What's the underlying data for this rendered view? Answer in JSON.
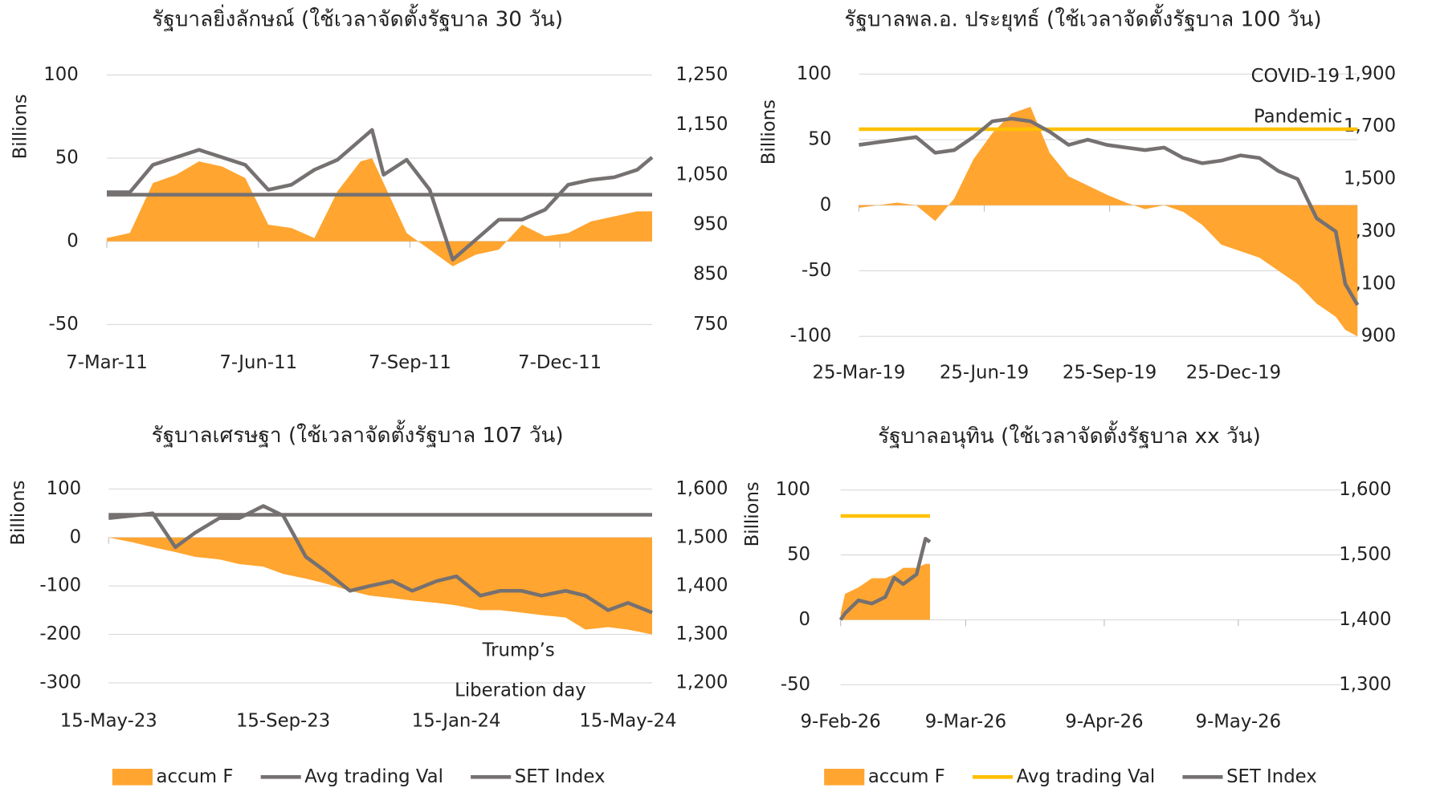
{
  "chart_data": [
    {
      "type": "combo",
      "title": "รัฐบาลยิ่งลักษณ์ (ใช้เวลาจัดตั้งรัฐบาล 30 วัน)",
      "y_label": "Billions",
      "x": [
        "2011-03-07",
        "2011-03-21",
        "2011-04-04",
        "2011-04-18",
        "2011-05-02",
        "2011-05-16",
        "2011-05-30",
        "2011-06-13",
        "2011-06-27",
        "2011-07-11",
        "2011-07-25",
        "2011-08-08",
        "2011-08-15",
        "2011-08-22",
        "2011-09-05",
        "2011-09-19",
        "2011-10-03",
        "2011-10-17",
        "2011-10-31",
        "2011-11-14",
        "2011-11-28",
        "2011-12-12",
        "2011-12-26",
        "2012-01-09",
        "2012-01-23",
        "2012-02-01"
      ],
      "xlim": [
        "2011-03-07",
        "2012-02-01"
      ],
      "xticks": [
        {
          "value": "2011-03-07",
          "label": "7-Mar-11"
        },
        {
          "value": "2011-06-07",
          "label": "7-Jun-11"
        },
        {
          "value": "2011-09-07",
          "label": "7-Sep-11"
        },
        {
          "value": "2011-12-07",
          "label": "7-Dec-11"
        }
      ],
      "ylim": [
        -50,
        100
      ],
      "yticks": [
        -50,
        0,
        50,
        100
      ],
      "y2lim": [
        750,
        1250
      ],
      "y2ticks": [
        750,
        850,
        950,
        {
          "value": 1050,
          "label": "1,050"
        },
        {
          "value": 1150,
          "label": "1,150"
        },
        {
          "value": 1250,
          "label": "1,250"
        }
      ],
      "grid": true,
      "series": [
        {
          "name": "accum F",
          "style": "area",
          "color": "#ffa530",
          "values": [
            2,
            5,
            35,
            40,
            48,
            45,
            38,
            10,
            8,
            2,
            30,
            48,
            50,
            35,
            5,
            -5,
            -15,
            -8,
            -5,
            10,
            3,
            5,
            12,
            15,
            18,
            18
          ]
        },
        {
          "name": "Avg trading Val",
          "style": "line",
          "color": "#767171",
          "values": [
            28,
            28,
            28,
            28,
            28,
            28,
            28,
            28,
            28,
            28,
            28,
            28,
            28,
            28,
            28,
            28,
            28,
            28,
            28,
            28,
            28,
            28,
            28,
            28,
            28,
            28
          ]
        },
        {
          "name": "SET Index",
          "style": "line",
          "color": "#767171",
          "axis": "y2",
          "values": [
            1015,
            1015,
            1070,
            1085,
            1100,
            1085,
            1070,
            1020,
            1030,
            1060,
            1080,
            1120,
            1140,
            1050,
            1080,
            1020,
            880,
            920,
            960,
            960,
            980,
            1030,
            1040,
            1045,
            1060,
            1085
          ]
        }
      ]
    },
    {
      "type": "combo",
      "title": "รัฐบาลพล.อ. ประยุทธ์ (ใช้เวลาจัดตั้งรัฐบาล 100 วัน)",
      "y_label": "Billions",
      "annotation": [
        "COVID-19",
        "Pandemic"
      ],
      "x": [
        "2019-03-25",
        "2019-04-08",
        "2019-04-22",
        "2019-05-06",
        "2019-05-20",
        "2019-06-03",
        "2019-06-17",
        "2019-07-01",
        "2019-07-15",
        "2019-07-29",
        "2019-08-12",
        "2019-08-26",
        "2019-09-09",
        "2019-09-23",
        "2019-10-07",
        "2019-10-21",
        "2019-11-04",
        "2019-11-18",
        "2019-12-02",
        "2019-12-16",
        "2019-12-30",
        "2020-01-13",
        "2020-01-27",
        "2020-02-10",
        "2020-02-24",
        "2020-03-09",
        "2020-03-16",
        "2020-03-25"
      ],
      "xlim": [
        "2019-03-25",
        "2020-03-25"
      ],
      "xticks": [
        {
          "value": "2019-03-25",
          "label": "25-Mar-19"
        },
        {
          "value": "2019-06-25",
          "label": "25-Jun-19"
        },
        {
          "value": "2019-09-25",
          "label": "25-Sep-19"
        },
        {
          "value": "2019-12-25",
          "label": "25-Dec-19"
        }
      ],
      "ylim": [
        -100,
        100
      ],
      "yticks": [
        -100,
        -50,
        0,
        50,
        100
      ],
      "y2lim": [
        900,
        1900
      ],
      "y2ticks": [
        900,
        {
          "value": 1100,
          "label": "1,100"
        },
        {
          "value": 1300,
          "label": "1,300"
        },
        {
          "value": 1500,
          "label": "1,500"
        },
        {
          "value": 1700,
          "label": "1,700"
        },
        {
          "value": 1900,
          "label": "1,900"
        }
      ],
      "grid": true,
      "series": [
        {
          "name": "accum F",
          "style": "area",
          "color": "#ffa530",
          "values": [
            -2,
            0,
            2,
            0,
            -12,
            5,
            35,
            55,
            70,
            75,
            40,
            22,
            15,
            8,
            2,
            -3,
            0,
            -5,
            -15,
            -30,
            -35,
            -40,
            -50,
            -60,
            -75,
            -85,
            -95,
            -100
          ]
        },
        {
          "name": "Avg trading Val",
          "style": "line",
          "color": "#ffc000",
          "values": [
            58,
            58,
            58,
            58,
            58,
            58,
            58,
            58,
            58,
            58,
            58,
            58,
            58,
            58,
            58,
            58,
            58,
            58,
            58,
            58,
            58,
            58,
            58,
            58,
            58,
            58,
            58,
            58
          ]
        },
        {
          "name": "SET Index",
          "style": "line",
          "color": "#767171",
          "axis": "y2",
          "values": [
            1630,
            1640,
            1650,
            1660,
            1600,
            1610,
            1660,
            1720,
            1730,
            1720,
            1680,
            1630,
            1650,
            1630,
            1620,
            1610,
            1620,
            1580,
            1560,
            1570,
            1590,
            1580,
            1530,
            1500,
            1350,
            1300,
            1100,
            1020
          ]
        }
      ]
    },
    {
      "type": "combo",
      "title": "รัฐบาลเศรษฐา (ใช้เวลาจัดตั้งรัฐบาล 107 วัน)",
      "y_label": "Billions",
      "annotation": [
        "Trump’s",
        "Liberation day"
      ],
      "x": [
        "2023-05-15",
        "2023-06-01",
        "2023-06-15",
        "2023-07-01",
        "2023-07-15",
        "2023-08-01",
        "2023-08-15",
        "2023-09-01",
        "2023-09-15",
        "2023-10-01",
        "2023-10-15",
        "2023-11-01",
        "2023-11-15",
        "2023-12-01",
        "2023-12-15",
        "2024-01-01",
        "2024-01-15",
        "2024-02-01",
        "2024-02-15",
        "2024-03-01",
        "2024-03-15",
        "2024-04-01",
        "2024-04-15",
        "2024-05-01",
        "2024-05-15",
        "2024-06-01"
      ],
      "xlim": [
        "2023-05-15",
        "2024-06-01"
      ],
      "xticks": [
        {
          "value": "2023-05-15",
          "label": "15-May-23"
        },
        {
          "value": "2023-09-15",
          "label": "15-Sep-23"
        },
        {
          "value": "2024-01-15",
          "label": "15-Jan-24"
        },
        {
          "value": "2024-05-15",
          "label": "15-May-24"
        }
      ],
      "ylim": [
        -300,
        100
      ],
      "yticks": [
        -300,
        -200,
        -100,
        0,
        100
      ],
      "y2lim": [
        1200,
        1600
      ],
      "y2ticks": [
        {
          "value": 1200,
          "label": "1,200"
        },
        {
          "value": 1300,
          "label": "1,300"
        },
        {
          "value": 1400,
          "label": "1,400"
        },
        {
          "value": 1500,
          "label": "1,500"
        },
        {
          "value": 1600,
          "label": "1,600"
        }
      ],
      "grid": true,
      "series": [
        {
          "name": "accum F",
          "style": "area",
          "color": "#ffa530",
          "values": [
            0,
            -10,
            -20,
            -30,
            -40,
            -45,
            -55,
            -60,
            -75,
            -85,
            -95,
            -110,
            -120,
            -125,
            -130,
            -135,
            -140,
            -150,
            -150,
            -155,
            -160,
            -165,
            -190,
            -185,
            -190,
            -200
          ]
        },
        {
          "name": "Avg trading Val",
          "style": "line",
          "color": "#767171",
          "values": [
            47,
            47,
            47,
            47,
            47,
            47,
            47,
            47,
            47,
            47,
            47,
            47,
            47,
            47,
            47,
            47,
            47,
            47,
            47,
            47,
            47,
            47,
            47,
            47,
            47,
            47
          ]
        },
        {
          "name": "SET Index",
          "style": "line",
          "color": "#767171",
          "axis": "y2",
          "values": [
            1540,
            1545,
            1550,
            1480,
            1510,
            1540,
            1540,
            1565,
            1545,
            1460,
            1430,
            1390,
            1400,
            1410,
            1390,
            1410,
            1420,
            1380,
            1390,
            1390,
            1380,
            1390,
            1380,
            1350,
            1365,
            1345
          ]
        }
      ]
    },
    {
      "type": "combo",
      "title": "รัฐบาลอนุทิน (ใช้เวลาจัดตั้งรัฐบาล xx วัน)",
      "y_label": "Billions",
      "x": [
        "2026-02-09",
        "2026-02-10",
        "2026-02-13",
        "2026-02-16",
        "2026-02-19",
        "2026-02-21",
        "2026-02-23",
        "2026-02-26",
        "2026-02-28",
        "2026-03-01"
      ],
      "xlim": [
        "2026-02-09",
        "2026-06-01"
      ],
      "xticks": [
        {
          "value": "2026-02-09",
          "label": "9-Feb-26"
        },
        {
          "value": "2026-03-09",
          "label": "9-Mar-26"
        },
        {
          "value": "2026-04-09",
          "label": "9-Apr-26"
        },
        {
          "value": "2026-05-09",
          "label": "9-May-26"
        }
      ],
      "ylim": [
        -50,
        100
      ],
      "yticks": [
        -50,
        0,
        50,
        100
      ],
      "y2lim": [
        1300,
        1600
      ],
      "y2ticks": [
        {
          "value": 1300,
          "label": "1,300"
        },
        {
          "value": 1400,
          "label": "1,400"
        },
        {
          "value": 1500,
          "label": "1,500"
        },
        {
          "value": 1600,
          "label": "1,600"
        }
      ],
      "grid": true,
      "series": [
        {
          "name": "accum F",
          "style": "area",
          "color": "#ffa530",
          "values": [
            5,
            20,
            25,
            32,
            32,
            35,
            40,
            40,
            43,
            43
          ]
        },
        {
          "name": "Avg trading Val",
          "style": "line",
          "color": "#ffc000",
          "values": [
            80,
            80,
            80,
            80,
            80,
            80,
            80,
            80,
            80,
            80
          ]
        },
        {
          "name": "SET Index",
          "style": "line",
          "color": "#767171",
          "axis": "y2",
          "values": [
            1400,
            1410,
            1430,
            1425,
            1435,
            1465,
            1455,
            1470,
            1525,
            1520
          ]
        }
      ]
    }
  ]
}
